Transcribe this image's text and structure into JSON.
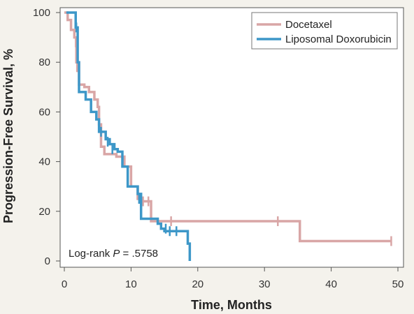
{
  "chart_data": {
    "type": "line",
    "step": true,
    "xlabel": "Time, Months",
    "ylabel": "Progression-Free Survival, %",
    "xlim": [
      0,
      50
    ],
    "ylim": [
      0,
      100
    ],
    "xticks": [
      0,
      10,
      20,
      30,
      40,
      50
    ],
    "yticks": [
      0,
      20,
      40,
      60,
      80,
      100
    ],
    "grid": false,
    "legend_position": "top-right",
    "annotation": {
      "prefix": "Log-rank ",
      "stat": "P",
      "value": " = .5758"
    },
    "series": [
      {
        "name": "Docetaxel",
        "color": "#d9a6a6",
        "points": [
          [
            0,
            100
          ],
          [
            0.5,
            97
          ],
          [
            1,
            93
          ],
          [
            1.5,
            90
          ],
          [
            1.8,
            80
          ],
          [
            2.2,
            71
          ],
          [
            3,
            70
          ],
          [
            3.7,
            68
          ],
          [
            4.5,
            65
          ],
          [
            5,
            62
          ],
          [
            5.2,
            55
          ],
          [
            5.5,
            46
          ],
          [
            6,
            43
          ],
          [
            7,
            43
          ],
          [
            7.8,
            42
          ],
          [
            9,
            38
          ],
          [
            10,
            30
          ],
          [
            11,
            25
          ],
          [
            11.5,
            24
          ],
          [
            13,
            16
          ],
          [
            15.5,
            16
          ],
          [
            35.3,
            16
          ],
          [
            35.3,
            8
          ],
          [
            49,
            8
          ]
        ],
        "censored": [
          [
            1.7,
            88
          ],
          [
            1.9,
            78
          ],
          [
            11.8,
            24
          ],
          [
            12.6,
            24
          ],
          [
            16,
            16
          ],
          [
            32,
            16
          ],
          [
            49,
            8
          ]
        ]
      },
      {
        "name": "Liposomal Doxorubicin",
        "color": "#3d97c8",
        "points": [
          [
            0.3,
            100
          ],
          [
            1.5,
            100
          ],
          [
            1.7,
            94
          ],
          [
            2,
            80
          ],
          [
            2.2,
            68
          ],
          [
            3.2,
            65
          ],
          [
            4,
            60
          ],
          [
            4.8,
            57
          ],
          [
            5.2,
            52
          ],
          [
            6.2,
            49
          ],
          [
            6.8,
            47
          ],
          [
            7.5,
            45
          ],
          [
            8,
            44
          ],
          [
            8.7,
            38
          ],
          [
            9.5,
            30
          ],
          [
            10.2,
            30
          ],
          [
            11,
            27
          ],
          [
            11.5,
            17
          ],
          [
            14,
            15
          ],
          [
            14.5,
            13
          ],
          [
            15,
            12
          ],
          [
            17,
            12
          ],
          [
            18.2,
            12
          ],
          [
            18.5,
            7
          ],
          [
            18.8,
            0
          ]
        ],
        "censored": [
          [
            1.8,
            94
          ],
          [
            5.5,
            52
          ],
          [
            6.5,
            48
          ],
          [
            7.2,
            45
          ],
          [
            11.2,
            25
          ],
          [
            15.2,
            13
          ],
          [
            15.8,
            12
          ],
          [
            16.8,
            12
          ]
        ]
      }
    ]
  }
}
